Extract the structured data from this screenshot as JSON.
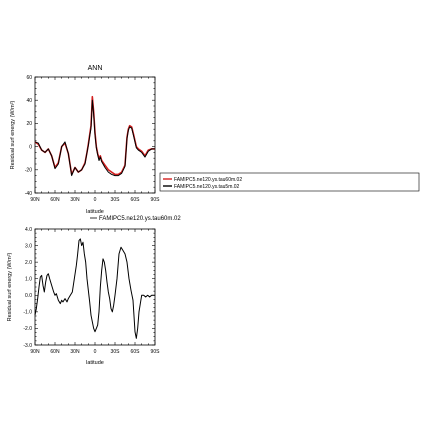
{
  "chart_data": [
    {
      "type": "line",
      "title": "ANN",
      "xlabel": "latitude",
      "ylabel": "Residual surf energy (W/m²)",
      "xlim": [
        90,
        -90
      ],
      "ylim": [
        -40,
        60
      ],
      "x_ticks": [
        90,
        60,
        30,
        0,
        -30,
        -60,
        -90
      ],
      "x_tick_labels": [
        "90N",
        "60N",
        "30N",
        "0",
        "30S",
        "60S",
        "90S"
      ],
      "y_ticks": [
        -40,
        -20,
        0,
        20,
        40,
        60
      ],
      "y_tick_labels": [
        "-40",
        "-20",
        "0",
        "20",
        "40",
        "60"
      ],
      "grid": false,
      "legend_placement": "right",
      "x": [
        90,
        85,
        80,
        75,
        70,
        65,
        60,
        55,
        50,
        45,
        40,
        35,
        30,
        25,
        20,
        15,
        12,
        10,
        8,
        6,
        5,
        4,
        2,
        0,
        -2,
        -4,
        -6,
        -8,
        -10,
        -15,
        -20,
        -25,
        -30,
        -35,
        -40,
        -45,
        -48,
        -50,
        -52,
        -55,
        -58,
        -60,
        -62,
        -65,
        -70,
        -75,
        -80,
        -85,
        -90
      ],
      "series": [
        {
          "name": "FAMIPC5.ne120.ys.tau60m.02",
          "color": "#d42020",
          "values": [
            4,
            2,
            -3,
            -5,
            -2,
            -8,
            -18,
            -14,
            0,
            3,
            -6,
            -24,
            -18,
            -22,
            -20,
            -14,
            -5,
            2,
            10,
            18,
            30,
            43,
            30,
            12,
            0,
            -6,
            -10,
            -8,
            -12,
            -16,
            -20,
            -22,
            -24,
            -24,
            -22,
            -16,
            8,
            15,
            18,
            17,
            10,
            5,
            0,
            -2,
            -4,
            -8,
            -3,
            -2,
            -2
          ]
        },
        {
          "name": "FAMIPC5.ne120.ys.tau5m.02",
          "color": "#000000",
          "values": [
            4,
            3,
            -3,
            -5,
            -2,
            -8,
            -19,
            -15,
            0,
            4,
            -6,
            -25,
            -18,
            -22,
            -20,
            -15,
            -5,
            1,
            9,
            16,
            27,
            40,
            28,
            10,
            -1,
            -7,
            -12,
            -9,
            -13,
            -18,
            -22,
            -24,
            -25,
            -25,
            -23,
            -17,
            7,
            14,
            17,
            16,
            9,
            4,
            -1,
            -3,
            -5,
            -9,
            -4,
            -2,
            -2
          ]
        }
      ]
    },
    {
      "type": "line",
      "title": "",
      "xlabel": "latitude",
      "ylabel": "Residual surf energy (W/m²)",
      "xlim": [
        90,
        -90
      ],
      "ylim": [
        -3.0,
        4.0
      ],
      "x_ticks": [
        90,
        60,
        30,
        0,
        -30,
        -60,
        -90
      ],
      "x_tick_labels": [
        "90N",
        "60N",
        "30N",
        "0",
        "30S",
        "60S",
        "90S"
      ],
      "y_ticks": [
        -3.0,
        -2.0,
        -1.0,
        0.0,
        1.0,
        2.0,
        3.0,
        4.0
      ],
      "y_tick_labels": [
        "-3.0",
        "-2.0",
        "-1.0",
        "0.0",
        "1.0",
        "2.0",
        "3.0",
        "4.0"
      ],
      "grid": false,
      "legend_placement": "top",
      "x": [
        90,
        88,
        86,
        84,
        82,
        80,
        78,
        76,
        74,
        72,
        70,
        68,
        65,
        62,
        60,
        58,
        55,
        52,
        50,
        48,
        45,
        42,
        40,
        37,
        34,
        31,
        28,
        26,
        24,
        22,
        20,
        18,
        16,
        14,
        12,
        10,
        8,
        6,
        4,
        2,
        0,
        -2,
        -4,
        -6,
        -8,
        -10,
        -12,
        -14,
        -16,
        -18,
        -20,
        -22,
        -24,
        -26,
        -28,
        -30,
        -33,
        -36,
        -39,
        -42,
        -45,
        -48,
        -51,
        -54,
        -57,
        -60,
        -62,
        -64,
        -66,
        -68,
        -70,
        -73,
        -76,
        -79,
        -82,
        -85,
        -88,
        -90
      ],
      "series": [
        {
          "name": "FAMIPC5.ne120.ys.tau60m.02",
          "color": "#000000",
          "values": [
            -1.2,
            -0.8,
            -0.2,
            0.5,
            1.1,
            1.2,
            0.6,
            0.2,
            0.8,
            1.2,
            1.3,
            1.0,
            0.6,
            0.2,
            0.0,
            0.1,
            -0.3,
            -0.5,
            -0.3,
            -0.4,
            -0.2,
            -0.4,
            -0.2,
            0.0,
            0.2,
            1.0,
            1.8,
            2.5,
            3.3,
            3.4,
            3.0,
            3.2,
            2.5,
            2.0,
            1.0,
            0.3,
            -0.4,
            -1.2,
            -1.6,
            -2.0,
            -2.2,
            -2.0,
            -1.8,
            -1.0,
            0.5,
            1.5,
            2.2,
            2.0,
            1.5,
            0.8,
            0.2,
            -0.2,
            -0.8,
            -1.0,
            -0.6,
            0.0,
            1.0,
            2.5,
            2.9,
            2.7,
            2.5,
            2.0,
            1.0,
            0.3,
            -0.3,
            -2.2,
            -2.6,
            -2.0,
            -1.0,
            -0.5,
            0.0,
            0.0,
            -0.1,
            0.0,
            -0.1,
            0.0,
            0.0,
            0.0
          ]
        }
      ]
    }
  ]
}
